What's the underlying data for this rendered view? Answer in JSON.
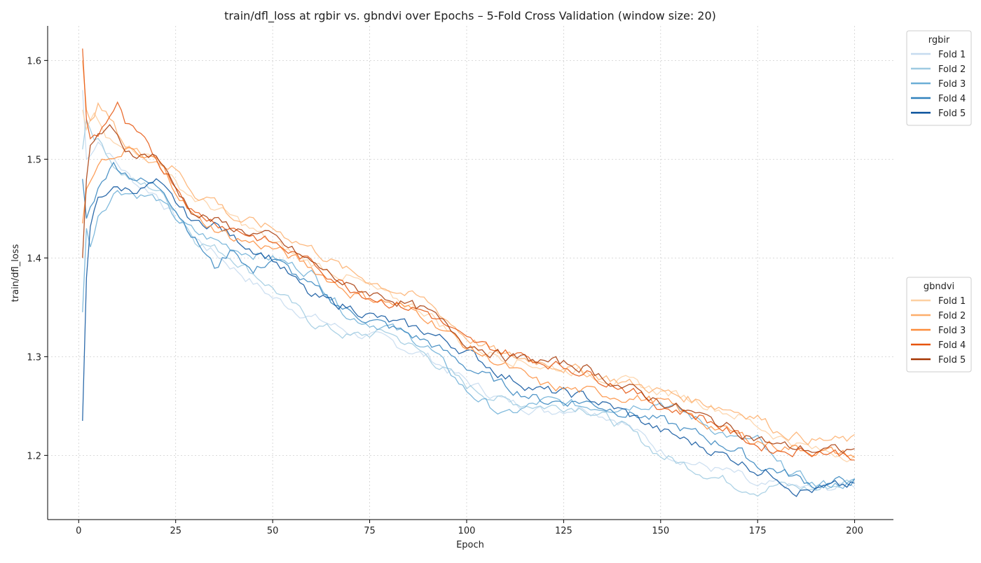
{
  "chart_data": {
    "type": "line",
    "title": "train/dfl_loss at rgbir vs. gbndvi over Epochs – 5-Fold Cross Validation (window size: 20)",
    "xlabel": "Epoch",
    "ylabel": "train/dfl_loss",
    "xlim": [
      -8,
      210
    ],
    "ylim": [
      1.135,
      1.635
    ],
    "xticks": [
      0,
      25,
      50,
      75,
      100,
      125,
      150,
      175,
      200
    ],
    "yticks": [
      1.2,
      1.3,
      1.4,
      1.5,
      1.6
    ],
    "xtick_labels": [
      "0",
      "25",
      "50",
      "75",
      "100",
      "125",
      "150",
      "175",
      "200"
    ],
    "ytick_labels": [
      "1.2",
      "1.3",
      "1.4",
      "1.5",
      "1.6"
    ],
    "grid": true,
    "groups": [
      {
        "legend_title": "rgbir",
        "legend_position": "top-right outside",
        "series": [
          {
            "name": "Fold 1",
            "color": "#c6dbef",
            "x": [
              1,
              2,
              5,
              10,
              15,
              20,
              25,
              30,
              40,
              50,
              60,
              70,
              80,
              90,
              100,
              110,
              120,
              130,
              140,
              150,
              160,
              170,
              175,
              180,
              190,
              200
            ],
            "values": [
              1.57,
              1.5,
              1.52,
              1.495,
              1.475,
              1.465,
              1.44,
              1.42,
              1.39,
              1.36,
              1.34,
              1.325,
              1.315,
              1.3,
              1.275,
              1.255,
              1.245,
              1.25,
              1.235,
              1.205,
              1.19,
              1.18,
              1.165,
              1.17,
              1.165,
              1.17
            ]
          },
          {
            "name": "Fold 2",
            "color": "#9ecae1",
            "x": [
              1,
              2,
              4,
              6,
              10,
              15,
              20,
              25,
              30,
              40,
              50,
              60,
              70,
              80,
              90,
              100,
              110,
              120,
              130,
              140,
              150,
              160,
              170,
              175,
              180,
              190,
              200
            ],
            "values": [
              1.51,
              1.54,
              1.525,
              1.515,
              1.49,
              1.475,
              1.47,
              1.45,
              1.42,
              1.4,
              1.37,
              1.335,
              1.32,
              1.325,
              1.3,
              1.27,
              1.255,
              1.25,
              1.25,
              1.23,
              1.2,
              1.185,
              1.17,
              1.165,
              1.17,
              1.165,
              1.175
            ]
          },
          {
            "name": "Fold 3",
            "color": "#6baed6",
            "x": [
              1,
              2,
              3,
              5,
              10,
              15,
              20,
              25,
              30,
              40,
              50,
              60,
              70,
              80,
              90,
              100,
              110,
              120,
              130,
              140,
              150,
              160,
              170,
              175,
              180,
              190,
              200
            ],
            "values": [
              1.345,
              1.43,
              1.41,
              1.445,
              1.47,
              1.465,
              1.46,
              1.44,
              1.425,
              1.41,
              1.4,
              1.385,
              1.34,
              1.33,
              1.31,
              1.265,
              1.24,
              1.255,
              1.25,
              1.25,
              1.255,
              1.235,
              1.215,
              1.215,
              1.19,
              1.17,
              1.172
            ]
          },
          {
            "name": "Fold 4",
            "color": "#3182bd",
            "x": [
              1,
              2,
              4,
              6,
              9,
              13,
              18,
              22,
              26,
              30,
              35,
              40,
              45,
              50,
              60,
              70,
              80,
              90,
              100,
              110,
              120,
              130,
              140,
              150,
              160,
              170,
              175,
              180,
              190,
              200
            ],
            "values": [
              1.48,
              1.44,
              1.46,
              1.48,
              1.495,
              1.485,
              1.475,
              1.47,
              1.445,
              1.42,
              1.39,
              1.41,
              1.385,
              1.4,
              1.37,
              1.345,
              1.33,
              1.315,
              1.29,
              1.27,
              1.255,
              1.255,
              1.245,
              1.235,
              1.22,
              1.205,
              1.19,
              1.185,
              1.17,
              1.175
            ]
          },
          {
            "name": "Fold 5",
            "color": "#08519c",
            "x": [
              1,
              2,
              3,
              5,
              8,
              12,
              16,
              20,
              25,
              30,
              35,
              40,
              45,
              50,
              55,
              60,
              70,
              80,
              90,
              100,
              110,
              120,
              130,
              140,
              150,
              160,
              170,
              175,
              180,
              185,
              190,
              200
            ],
            "values": [
              1.235,
              1.38,
              1.43,
              1.46,
              1.47,
              1.47,
              1.47,
              1.475,
              1.455,
              1.435,
              1.435,
              1.42,
              1.41,
              1.4,
              1.38,
              1.36,
              1.35,
              1.335,
              1.325,
              1.305,
              1.28,
              1.265,
              1.26,
              1.245,
              1.225,
              1.21,
              1.195,
              1.185,
              1.18,
              1.165,
              1.165,
              1.17
            ]
          }
        ]
      },
      {
        "legend_title": "gbndvi",
        "legend_position": "center-right outside",
        "series": [
          {
            "name": "Fold 1",
            "color": "#fdd0a2",
            "x": [
              1,
              2,
              4,
              7,
              10,
              15,
              20,
              25,
              30,
              40,
              50,
              60,
              70,
              80,
              90,
              100,
              110,
              120,
              130,
              140,
              150,
              160,
              170,
              180,
              190,
              200
            ],
            "values": [
              1.55,
              1.53,
              1.545,
              1.52,
              1.52,
              1.51,
              1.5,
              1.475,
              1.46,
              1.44,
              1.415,
              1.395,
              1.38,
              1.36,
              1.345,
              1.31,
              1.3,
              1.29,
              1.285,
              1.275,
              1.265,
              1.255,
              1.24,
              1.22,
              1.205,
              1.2
            ]
          },
          {
            "name": "Fold 2",
            "color": "#fdae6b",
            "x": [
              1,
              2,
              3,
              5,
              8,
              12,
              16,
              20,
              25,
              30,
              35,
              40,
              50,
              60,
              70,
              80,
              90,
              100,
              110,
              120,
              130,
              140,
              150,
              160,
              170,
              175,
              180,
              190,
              200
            ],
            "values": [
              1.6,
              1.55,
              1.54,
              1.555,
              1.54,
              1.515,
              1.505,
              1.5,
              1.49,
              1.465,
              1.46,
              1.44,
              1.43,
              1.41,
              1.385,
              1.37,
              1.355,
              1.32,
              1.3,
              1.295,
              1.285,
              1.275,
              1.265,
              1.255,
              1.245,
              1.24,
              1.225,
              1.215,
              1.215
            ]
          },
          {
            "name": "Fold 3",
            "color": "#fd8d3c",
            "x": [
              1,
              2,
              4,
              6,
              9,
              12,
              16,
              20,
              25,
              30,
              40,
              50,
              60,
              70,
              80,
              90,
              100,
              110,
              120,
              130,
              140,
              150,
              160,
              170,
              180,
              190,
              200
            ],
            "values": [
              1.435,
              1.47,
              1.49,
              1.5,
              1.495,
              1.51,
              1.5,
              1.5,
              1.47,
              1.44,
              1.42,
              1.41,
              1.39,
              1.365,
              1.355,
              1.34,
              1.31,
              1.29,
              1.27,
              1.265,
              1.26,
              1.255,
              1.235,
              1.22,
              1.21,
              1.205,
              1.2
            ]
          },
          {
            "name": "Fold 4",
            "color": "#e6550d",
            "x": [
              1,
              2,
              3,
              5,
              8,
              10,
              12,
              16,
              20,
              25,
              30,
              40,
              50,
              60,
              70,
              80,
              90,
              100,
              110,
              120,
              130,
              140,
              150,
              160,
              170,
              175,
              180,
              190,
              200
            ],
            "values": [
              1.612,
              1.54,
              1.52,
              1.525,
              1.545,
              1.555,
              1.535,
              1.52,
              1.5,
              1.475,
              1.445,
              1.43,
              1.415,
              1.395,
              1.37,
              1.355,
              1.345,
              1.315,
              1.305,
              1.295,
              1.285,
              1.27,
              1.25,
              1.24,
              1.22,
              1.21,
              1.205,
              1.205,
              1.2
            ]
          },
          {
            "name": "Fold 5",
            "color": "#a63603",
            "x": [
              1,
              2,
              3,
              5,
              8,
              12,
              16,
              20,
              25,
              30,
              40,
              50,
              60,
              70,
              80,
              90,
              100,
              110,
              120,
              130,
              140,
              150,
              160,
              170,
              180,
              190,
              200
            ],
            "values": [
              1.4,
              1.48,
              1.51,
              1.525,
              1.53,
              1.51,
              1.505,
              1.505,
              1.47,
              1.445,
              1.43,
              1.42,
              1.395,
              1.37,
              1.36,
              1.345,
              1.315,
              1.3,
              1.295,
              1.29,
              1.27,
              1.255,
              1.24,
              1.225,
              1.21,
              1.205,
              1.205
            ]
          }
        ]
      }
    ]
  }
}
